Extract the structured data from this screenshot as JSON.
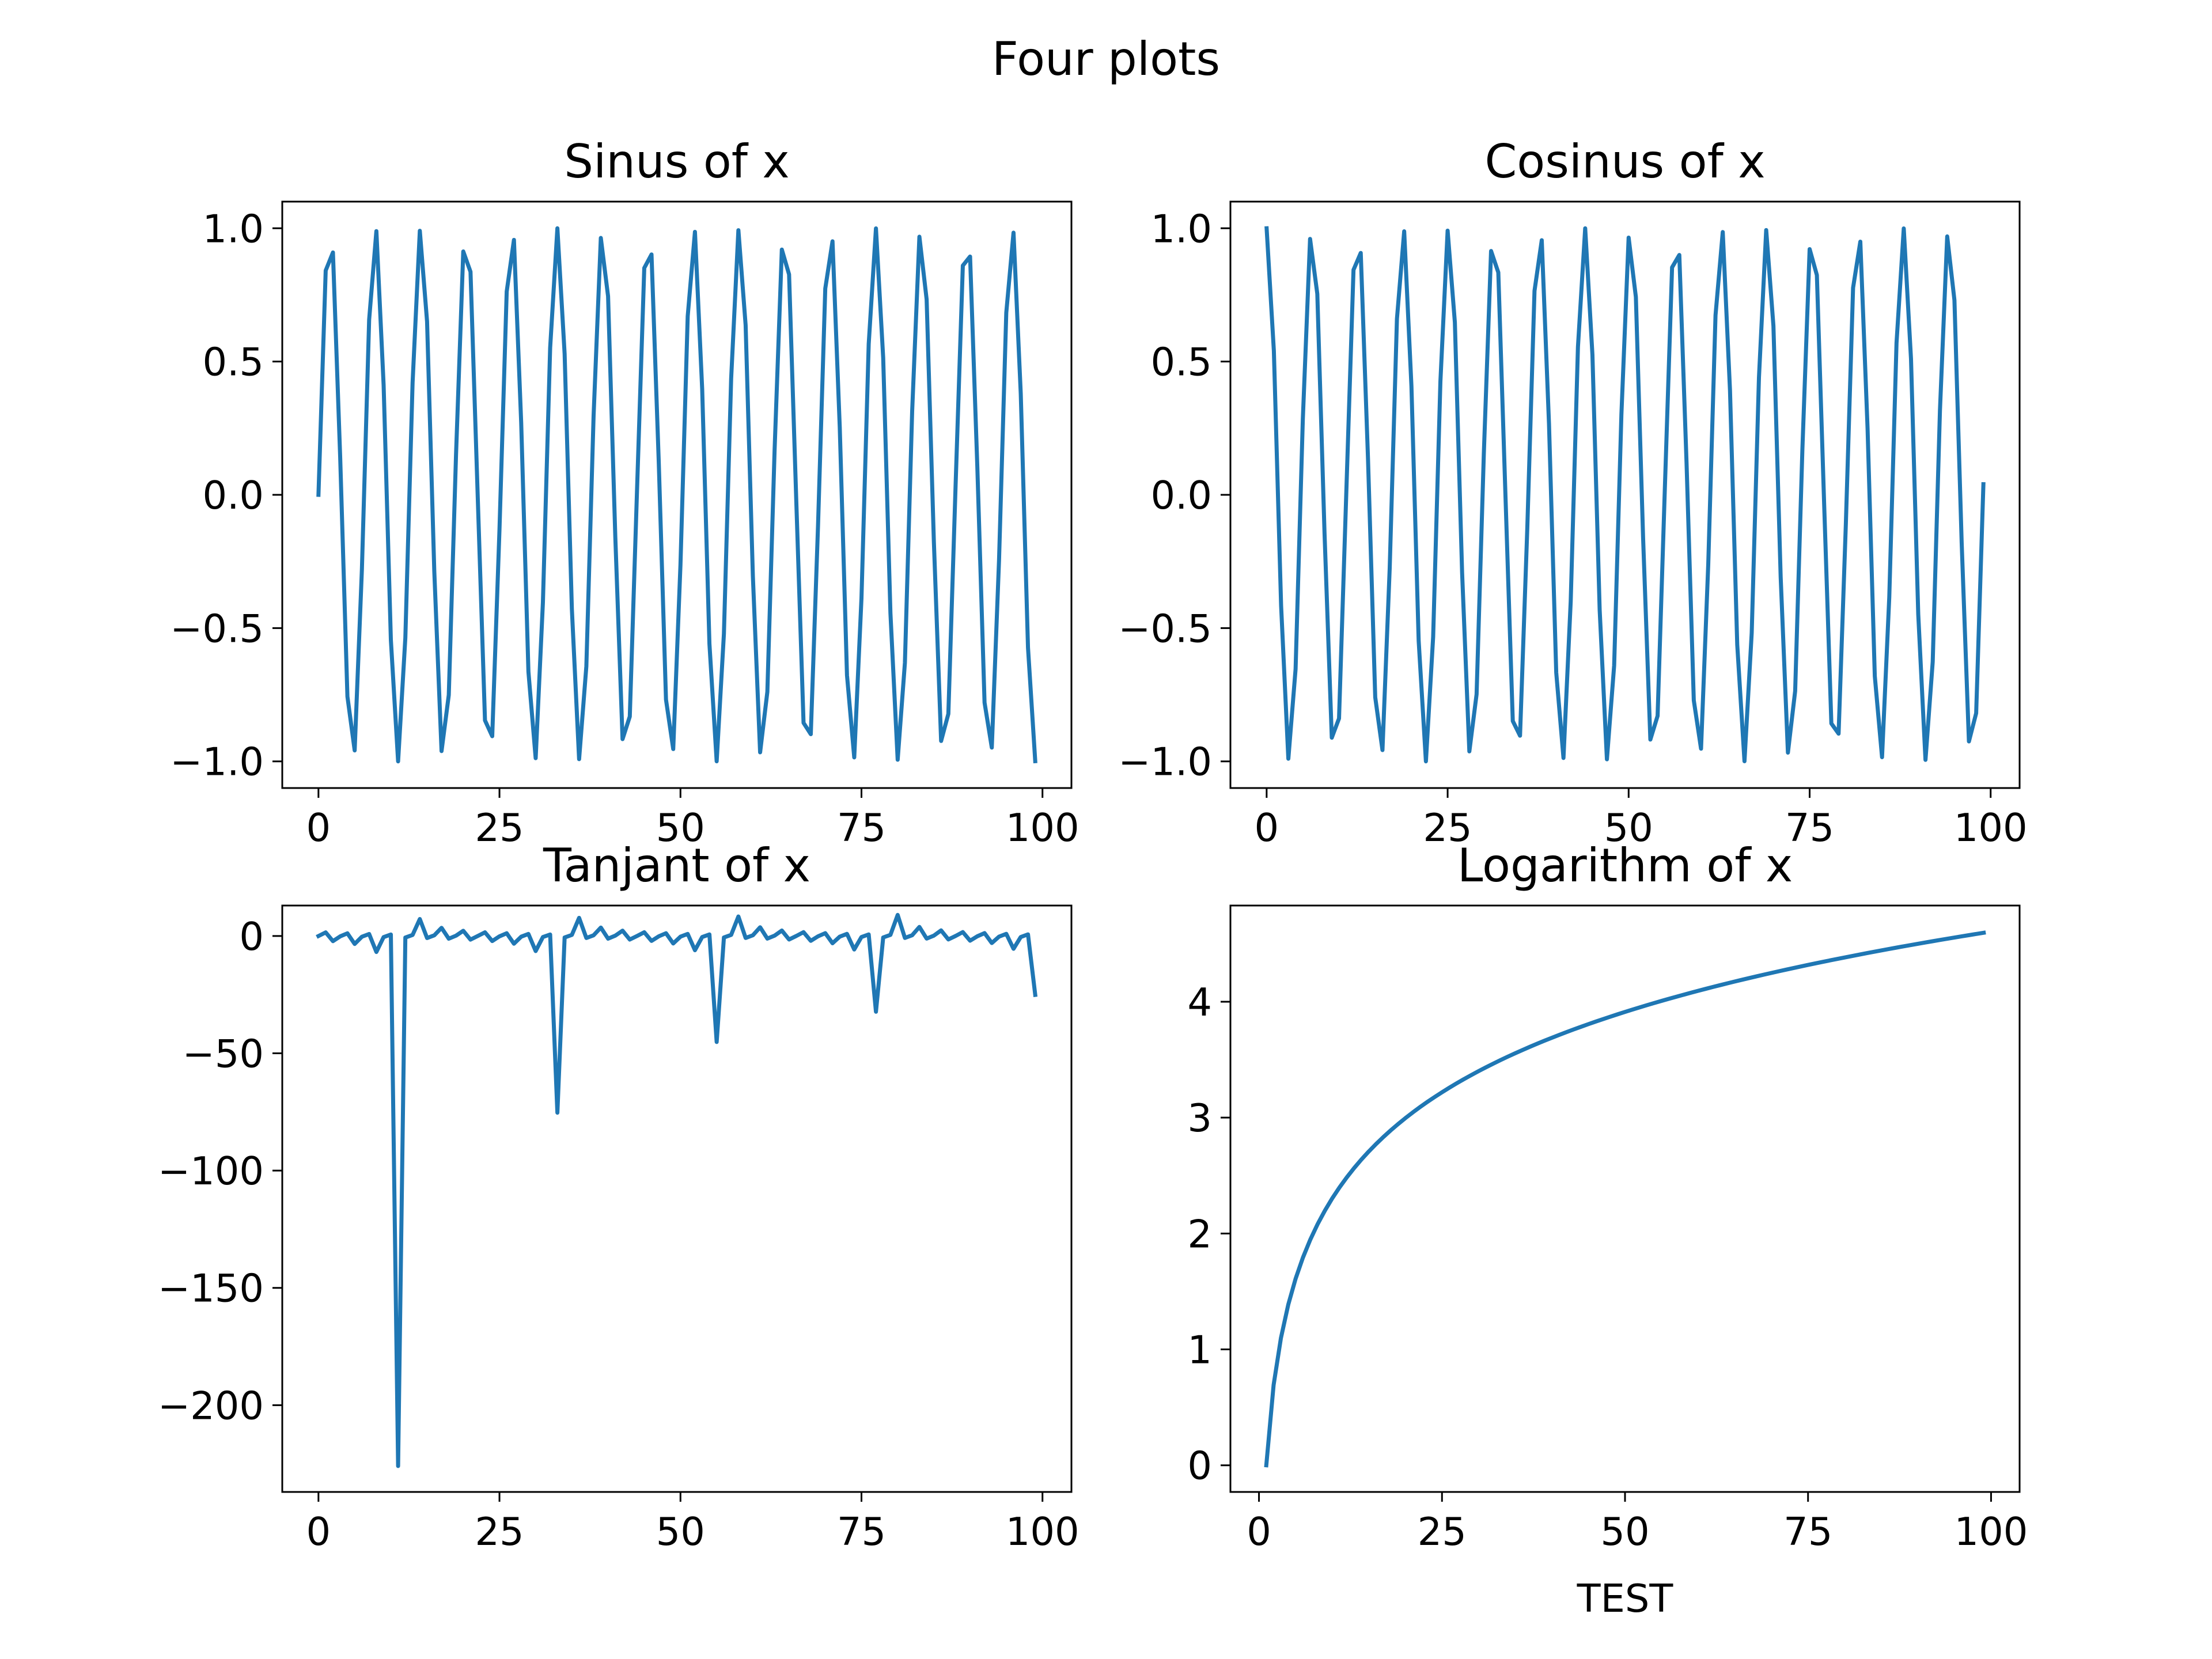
{
  "figure": {
    "title": "Four plots"
  },
  "style": {
    "line_color": "#1f77b4",
    "axis_color": "#000000",
    "background": "#ffffff"
  },
  "chart_data": [
    {
      "type": "line",
      "title": "Sinus of x",
      "xlabel": "",
      "ylabel": "",
      "function": "sin",
      "x_start": 0,
      "x_end": 99,
      "x_step": 1,
      "xlim": [
        -5,
        104
      ],
      "ylim": [
        -1.1,
        1.1
      ],
      "xticks": [
        0,
        25,
        50,
        75,
        100
      ],
      "xtick_labels": [
        "0",
        "25",
        "50",
        "75",
        "100"
      ],
      "yticks": [
        -1.0,
        -0.5,
        0.0,
        0.5,
        1.0
      ],
      "ytick_labels": [
        "−1.0",
        "−0.5",
        "0.0",
        "0.5",
        "1.0"
      ],
      "grid": false
    },
    {
      "type": "line",
      "title": "Cosinus of x",
      "xlabel": "",
      "ylabel": "",
      "function": "cos",
      "x_start": 0,
      "x_end": 99,
      "x_step": 1,
      "xlim": [
        -5,
        104
      ],
      "ylim": [
        -1.1,
        1.1
      ],
      "xticks": [
        0,
        25,
        50,
        75,
        100
      ],
      "xtick_labels": [
        "0",
        "25",
        "50",
        "75",
        "100"
      ],
      "yticks": [
        -1.0,
        -0.5,
        0.0,
        0.5,
        1.0
      ],
      "ytick_labels": [
        "−1.0",
        "−0.5",
        "0.0",
        "0.5",
        "1.0"
      ],
      "grid": false
    },
    {
      "type": "line",
      "title": "Tanjant of x",
      "xlabel": "",
      "ylabel": "",
      "function": "tan",
      "x_start": 0,
      "x_end": 99,
      "x_step": 1,
      "xlim": [
        -5,
        104
      ],
      "ylim": [
        -237,
        13
      ],
      "xticks": [
        0,
        25,
        50,
        75,
        100
      ],
      "xtick_labels": [
        "0",
        "25",
        "50",
        "75",
        "100"
      ],
      "yticks": [
        -200,
        -150,
        -100,
        -50,
        0
      ],
      "ytick_labels": [
        "−200",
        "−150",
        "−100",
        "−50",
        "0"
      ],
      "grid": false
    },
    {
      "type": "line",
      "title": "Logarithm of x",
      "xlabel": "TEST",
      "ylabel": "",
      "function": "log",
      "x_start": 1,
      "x_end": 99,
      "x_step": 1,
      "xlim": [
        -3.9,
        103.9
      ],
      "ylim": [
        -0.23,
        4.83
      ],
      "xticks": [
        0,
        25,
        50,
        75,
        100
      ],
      "xtick_labels": [
        "0",
        "25",
        "50",
        "75",
        "100"
      ],
      "yticks": [
        0,
        1,
        2,
        3,
        4
      ],
      "ytick_labels": [
        "0",
        "1",
        "2",
        "3",
        "4"
      ],
      "grid": false
    }
  ]
}
